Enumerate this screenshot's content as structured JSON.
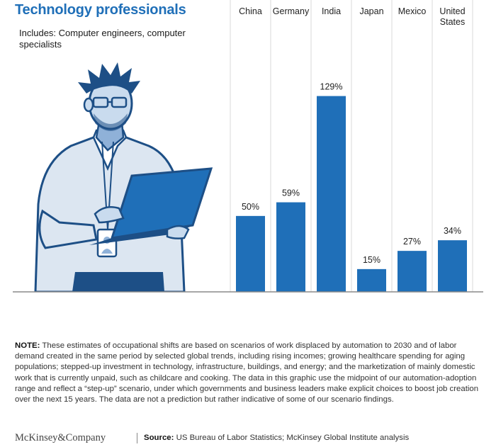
{
  "header": {
    "title": "Technology professionals",
    "subtitle": "Includes: Computer engineers, computer specialists"
  },
  "chart_data": {
    "type": "bar",
    "categories": [
      "China",
      "Germany",
      "India",
      "Japan",
      "Mexico",
      "United States"
    ],
    "values": [
      50,
      59,
      129,
      15,
      27,
      34
    ],
    "value_labels": [
      "50%",
      "59%",
      "129%",
      "15%",
      "27%",
      "34%"
    ],
    "unit": "%",
    "ylim": [
      0,
      140
    ],
    "grid": false,
    "bar_color": "#1f6fb8"
  },
  "note": {
    "label": "NOTE:",
    "text": "These estimates of occupational shifts are based on scenarios of work displaced by automation to 2030 and of labor demand created in the same period by selected global trends, including rising incomes; growing healthcare spending for aging populations; stepped-up investment in technology, infrastructure, buildings, and energy; and the marketization of mainly domestic work that is currently unpaid, such as childcare and cooking. The data in this graphic use the midpoint of our automation-adoption range and reflect a “step-up” scenario, under which governments and business leaders make explicit choices to boost job creation over the next 15 years. The data are not a prediction but rather indicative of some of our scenario findings."
  },
  "footer": {
    "logo_text": "McKinsey&Company",
    "source_label": "Source:",
    "source_text": "US Bureau of Labor Statistics; McKinsey Global Institute analysis"
  },
  "colors": {
    "accent": "#1f6fb8",
    "illustration_dark": "#1d4f86",
    "illustration_light": "#dce6f1"
  }
}
